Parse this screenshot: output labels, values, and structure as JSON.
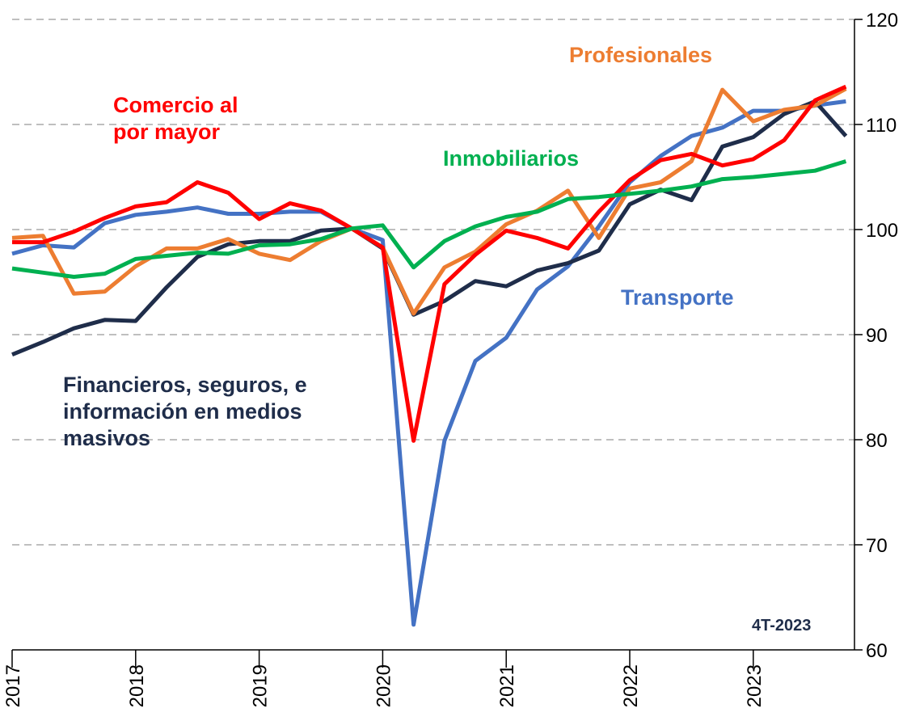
{
  "chart_data": {
    "type": "line",
    "categories": [
      "2017",
      null,
      null,
      null,
      "2018",
      null,
      null,
      null,
      "2019",
      null,
      null,
      null,
      "2020",
      null,
      null,
      null,
      "2021",
      null,
      null,
      null,
      "2022",
      null,
      null,
      null,
      "2023",
      null,
      null,
      null
    ],
    "series": [
      {
        "name": "Transporte",
        "color": "#4472c4",
        "values": [
          97.7,
          98.5,
          98.3,
          100.6,
          101.4,
          101.7,
          102.1,
          101.5,
          101.5,
          101.7,
          101.7,
          100.1,
          99.0,
          62.4,
          79.9,
          87.5,
          89.7,
          94.3,
          96.5,
          100.3,
          104.5,
          107.0,
          108.9,
          109.7,
          111.3,
          111.3,
          111.8,
          112.2
        ]
      },
      {
        "name": "Financieros, seguros, e información en medios masivos",
        "color": "#1f2d4a",
        "values": [
          88.1,
          89.3,
          90.6,
          91.4,
          91.3,
          94.5,
          97.4,
          98.6,
          98.9,
          98.9,
          99.9,
          100.1,
          98.2,
          91.9,
          93.2,
          95.1,
          94.6,
          96.1,
          96.8,
          98.0,
          102.4,
          103.8,
          102.8,
          107.9,
          108.8,
          111.0,
          112.2,
          108.9
        ]
      },
      {
        "name": "Profesionales",
        "color": "#ed7d31",
        "values": [
          99.2,
          99.4,
          93.9,
          94.1,
          96.5,
          98.2,
          98.2,
          99.1,
          97.7,
          97.1,
          98.9,
          100.1,
          98.3,
          92.0,
          96.4,
          97.9,
          100.5,
          101.8,
          103.7,
          99.2,
          103.9,
          104.5,
          106.5,
          113.3,
          110.3,
          111.4,
          111.8,
          113.4
        ]
      },
      {
        "name": "Comercio al por mayor",
        "color": "#ff0000",
        "values": [
          98.8,
          98.8,
          99.8,
          101.1,
          102.2,
          102.6,
          104.5,
          103.5,
          101.0,
          102.5,
          101.8,
          100.1,
          98.3,
          79.9,
          94.8,
          97.6,
          99.9,
          99.2,
          98.2,
          101.7,
          104.7,
          106.6,
          107.2,
          106.1,
          106.7,
          108.5,
          112.3,
          113.6
        ]
      },
      {
        "name": "Inmobiliarios",
        "color": "#00b050",
        "values": [
          96.3,
          95.9,
          95.5,
          95.8,
          97.2,
          97.5,
          97.8,
          97.7,
          98.5,
          98.6,
          99.1,
          100.1,
          100.4,
          96.4,
          98.9,
          100.3,
          101.2,
          101.7,
          102.9,
          103.1,
          103.4,
          103.7,
          104.1,
          104.8,
          105.0,
          105.3,
          105.6,
          106.5
        ]
      }
    ],
    "ylim": [
      60,
      120
    ],
    "yticks": [
      60,
      70,
      80,
      90,
      100,
      110,
      120
    ],
    "grid": true,
    "annotations": [
      "4T-2023"
    ]
  }
}
